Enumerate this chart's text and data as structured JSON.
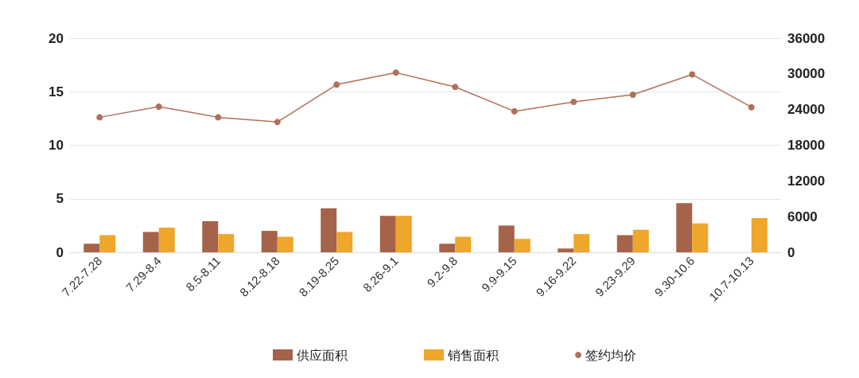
{
  "chart_data": {
    "type": "bar",
    "categories": [
      "7.22-7.28",
      "7.29-8.4",
      "8.5-8.11",
      "8.12-8.18",
      "8.19-8.25",
      "8.26-9.1",
      "9.2-9.8",
      "9.9-9.15",
      "9.16-9.22",
      "9.23-9.29",
      "9.30-10.6",
      "10.7-10.13"
    ],
    "series": [
      {
        "name": "供应面积",
        "color": "#a5634a",
        "values": [
          0.8,
          1.9,
          2.9,
          2.0,
          4.1,
          3.4,
          0.8,
          2.5,
          0.35,
          1.6,
          4.6,
          null
        ]
      },
      {
        "name": "销售面积",
        "color": "#eea62b",
        "values": [
          1.6,
          2.3,
          1.7,
          1.45,
          1.9,
          3.4,
          1.45,
          1.25,
          1.7,
          2.1,
          2.7,
          3.2
        ]
      },
      {
        "name": "签约均价",
        "type": "line",
        "axis": "y2",
        "color": "#b0705a",
        "marker": "circle",
        "values": [
          22700,
          24500,
          22700,
          21900,
          28200,
          30200,
          27800,
          23700,
          25300,
          26500,
          29900,
          24400
        ]
      }
    ],
    "ylim": [
      0,
      20
    ],
    "yticks": [
      0,
      5,
      10,
      15,
      20
    ],
    "y2lim": [
      0,
      36000
    ],
    "y2ticks": [
      0,
      6000,
      12000,
      18000,
      24000,
      30000,
      36000
    ],
    "grid": "y",
    "legend": "bottom"
  }
}
